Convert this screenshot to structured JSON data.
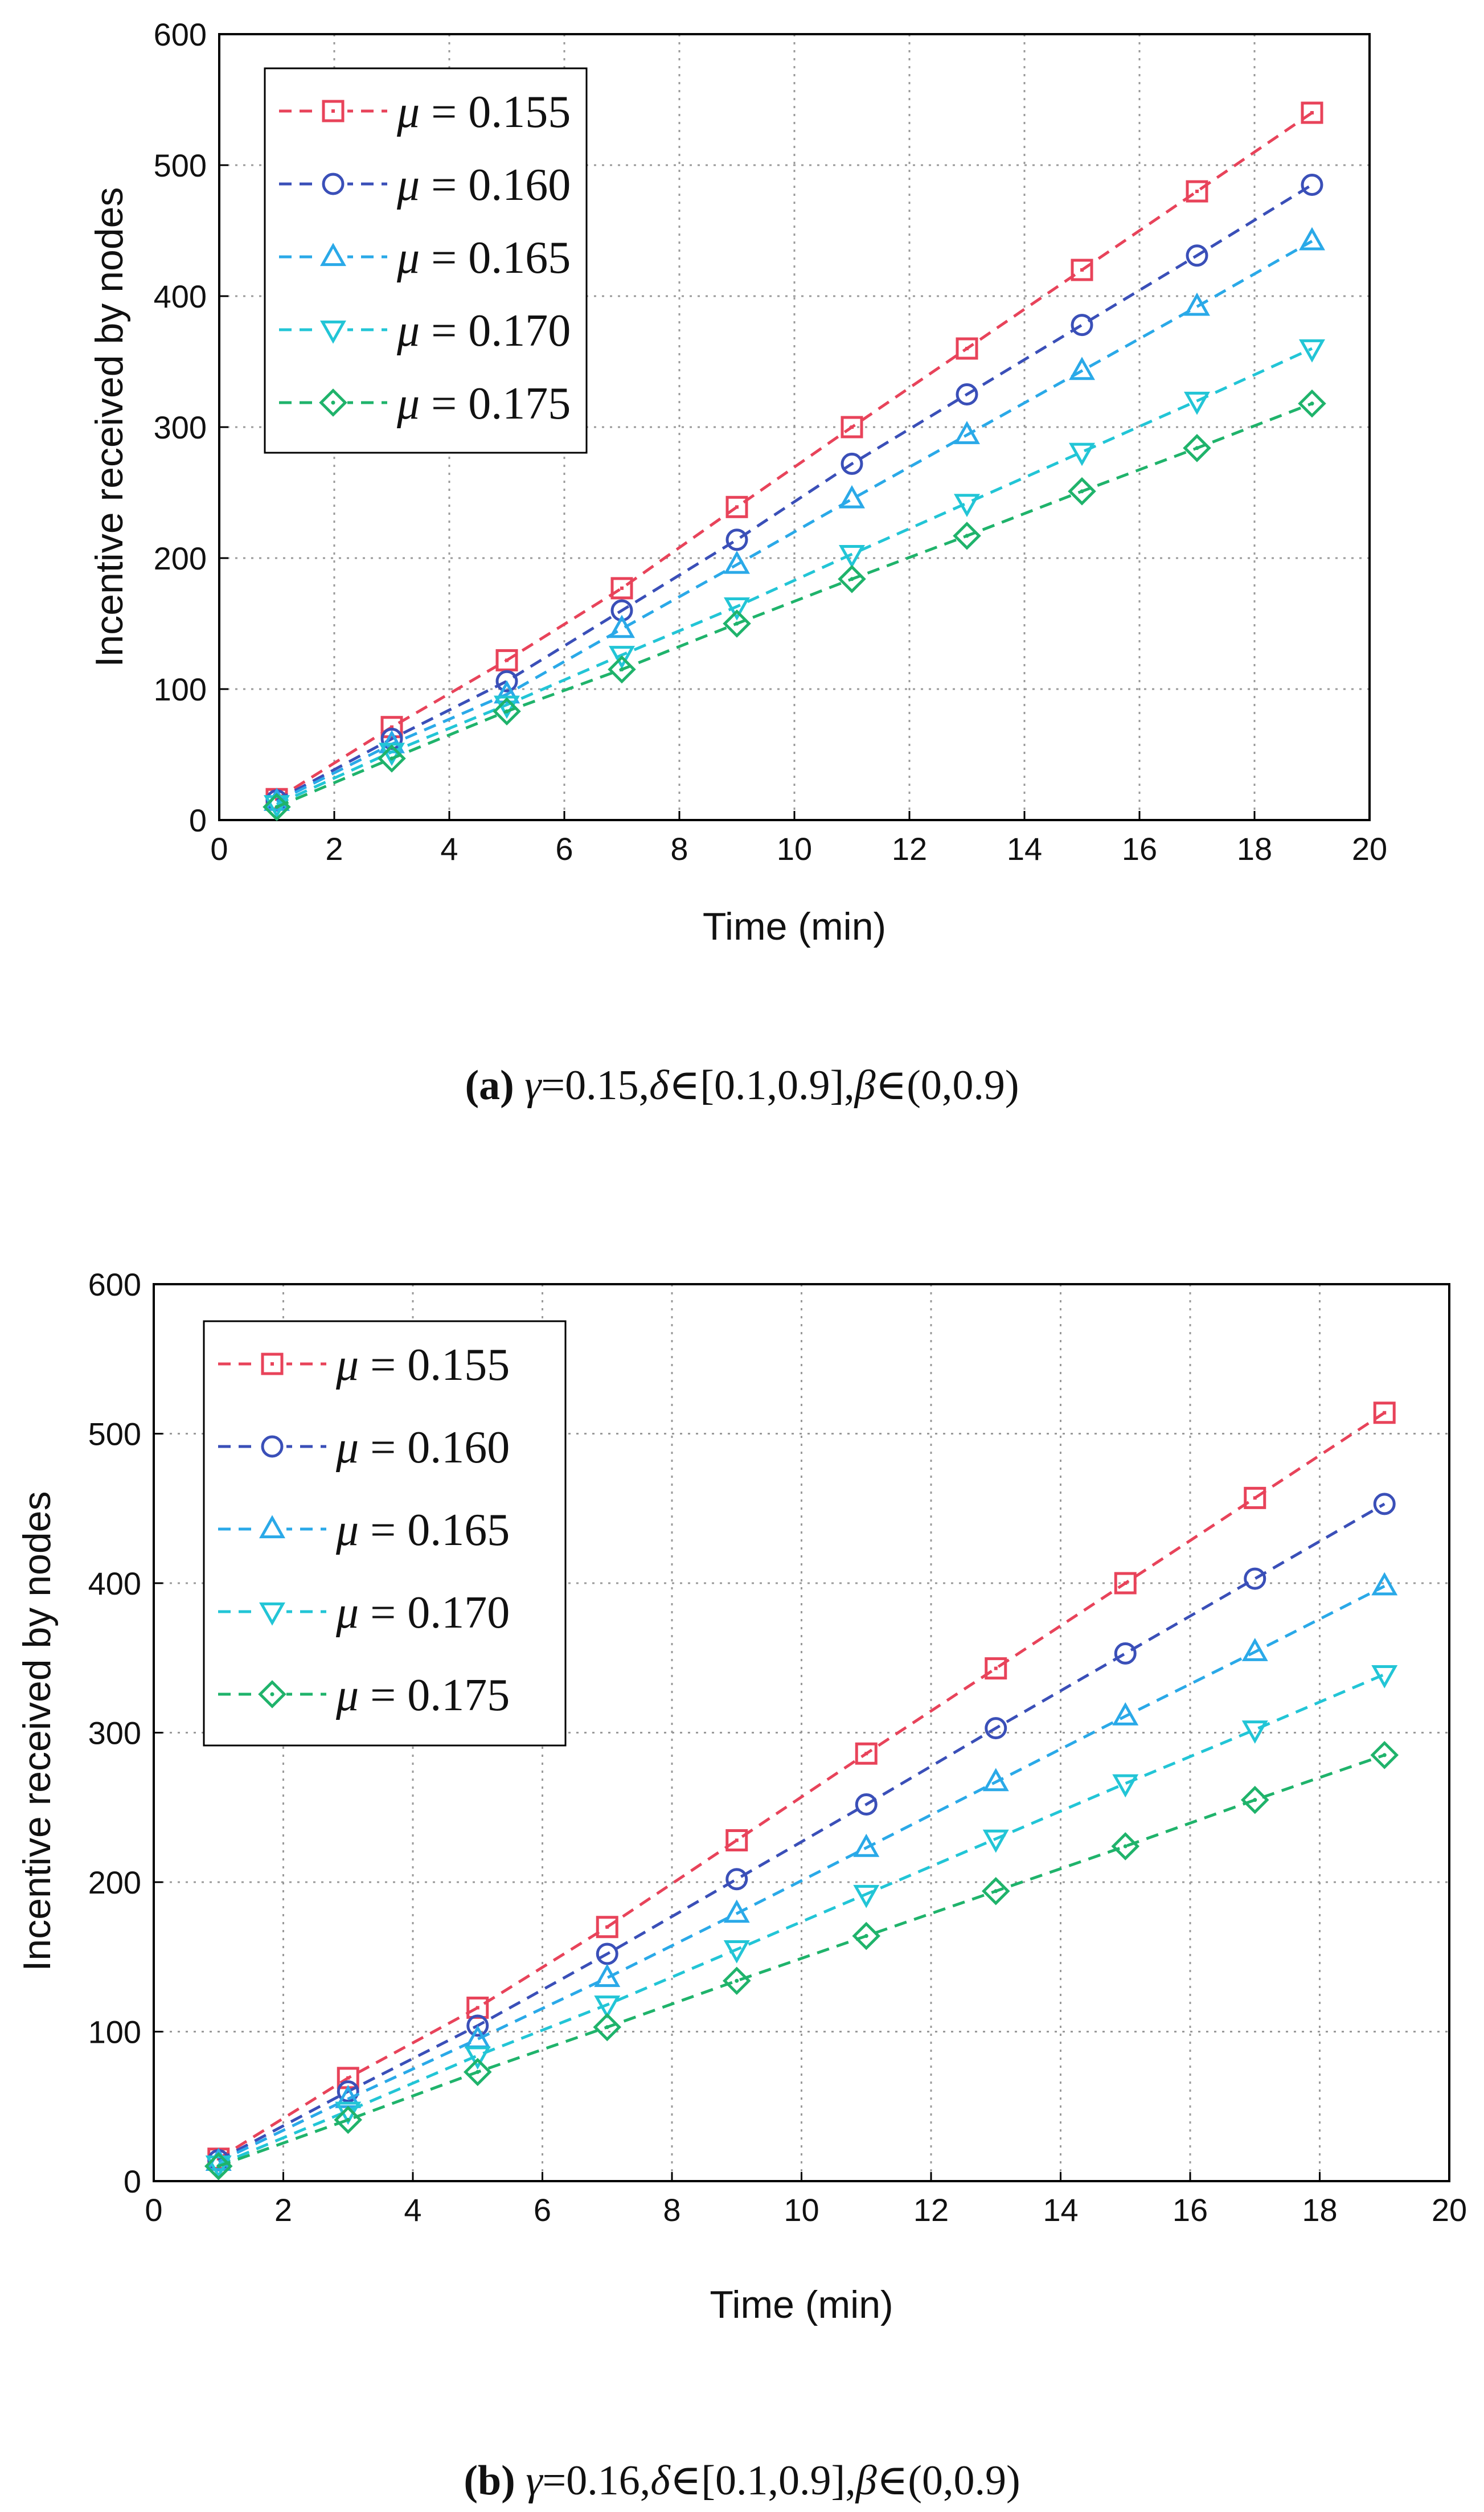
{
  "chart_data": [
    {
      "type": "line",
      "panel": "a",
      "xlabel": "Time (min)",
      "ylabel": "Incentive received by nodes",
      "xlim": [
        0,
        20
      ],
      "ylim": [
        0,
        600
      ],
      "xticks": [
        0,
        2,
        4,
        6,
        8,
        10,
        12,
        14,
        16,
        18,
        20
      ],
      "yticks": [
        0,
        100,
        200,
        300,
        400,
        500,
        600
      ],
      "grid": true,
      "legend_position": "top-left",
      "x": [
        1,
        3,
        5,
        7,
        9,
        11,
        13,
        15,
        17,
        19
      ],
      "series": [
        {
          "name": "μ = 0.155",
          "symbol": "μ",
          "value_text": "= 0.155",
          "color": "#e8435a",
          "marker": "square",
          "values": [
            16,
            71,
            122,
            177,
            239,
            300,
            360,
            420,
            480,
            540
          ]
        },
        {
          "name": "μ = 0.160",
          "symbol": "μ",
          "value_text": "= 0.160",
          "color": "#3a4fb8",
          "marker": "circle",
          "values": [
            15,
            62,
            106,
            160,
            214,
            272,
            325,
            378,
            431,
            485
          ]
        },
        {
          "name": "μ = 0.165",
          "symbol": "μ",
          "value_text": "= 0.165",
          "color": "#2aa9e8",
          "marker": "triangle-up",
          "values": [
            14,
            58,
            96,
            146,
            195,
            245,
            294,
            343,
            392,
            442
          ]
        },
        {
          "name": "μ = 0.170",
          "symbol": "μ",
          "value_text": "= 0.170",
          "color": "#22c5d6",
          "marker": "triangle-down",
          "values": [
            12,
            52,
            88,
            126,
            163,
            203,
            242,
            281,
            320,
            360
          ]
        },
        {
          "name": "μ = 0.175",
          "symbol": "μ",
          "value_text": "= 0.175",
          "color": "#1fb36b",
          "marker": "diamond",
          "values": [
            10,
            47,
            83,
            115,
            150,
            184,
            217,
            251,
            284,
            318
          ]
        }
      ],
      "caption": {
        "label": "(a)",
        "gamma_symbol": "γ",
        "gamma_value": "=0.15,",
        "delta_symbol": "δ",
        "delta_range": "∈[0.1,0.9],",
        "beta_symbol": "β",
        "beta_range": "∈(0,0.9)"
      }
    },
    {
      "type": "line",
      "panel": "b",
      "xlabel": "Time (min)",
      "ylabel": "Incentive received by nodes",
      "xlim": [
        0,
        20
      ],
      "ylim": [
        0,
        600
      ],
      "xticks": [
        0,
        2,
        4,
        6,
        8,
        10,
        12,
        14,
        16,
        18,
        20
      ],
      "yticks": [
        0,
        100,
        200,
        300,
        400,
        500,
        600
      ],
      "grid": true,
      "legend_position": "top-left",
      "x": [
        1,
        3,
        5,
        7,
        9,
        11,
        13,
        15,
        17,
        19
      ],
      "series": [
        {
          "name": "μ = 0.155",
          "symbol": "μ",
          "value_text": "= 0.155",
          "color": "#e8435a",
          "marker": "square",
          "values": [
            15,
            69,
            116,
            170,
            228,
            286,
            343,
            400,
            457,
            514
          ]
        },
        {
          "name": "μ = 0.160",
          "symbol": "μ",
          "value_text": "= 0.160",
          "color": "#3a4fb8",
          "marker": "circle",
          "values": [
            14,
            60,
            104,
            152,
            202,
            252,
            303,
            353,
            403,
            453
          ]
        },
        {
          "name": "μ = 0.165",
          "symbol": "μ",
          "value_text": "= 0.165",
          "color": "#2aa9e8",
          "marker": "triangle-up",
          "values": [
            13,
            55,
            95,
            136,
            179,
            223,
            267,
            311,
            354,
            398
          ]
        },
        {
          "name": "μ = 0.170",
          "symbol": "μ",
          "value_text": "= 0.170",
          "color": "#22c5d6",
          "marker": "triangle-down",
          "values": [
            11,
            47,
            84,
            118,
            155,
            192,
            229,
            266,
            302,
            339
          ]
        },
        {
          "name": "μ = 0.175",
          "symbol": "μ",
          "value_text": "= 0.175",
          "color": "#1fb36b",
          "marker": "diamond",
          "values": [
            10,
            41,
            73,
            103,
            134,
            164,
            194,
            224,
            255,
            285
          ]
        }
      ],
      "caption": {
        "label": "(b)",
        "gamma_symbol": "γ",
        "gamma_value": "=0.16,",
        "delta_symbol": "δ",
        "delta_range": "∈[0.1,0.9],",
        "beta_symbol": "β",
        "beta_range": "∈(0,0.9)"
      }
    }
  ]
}
